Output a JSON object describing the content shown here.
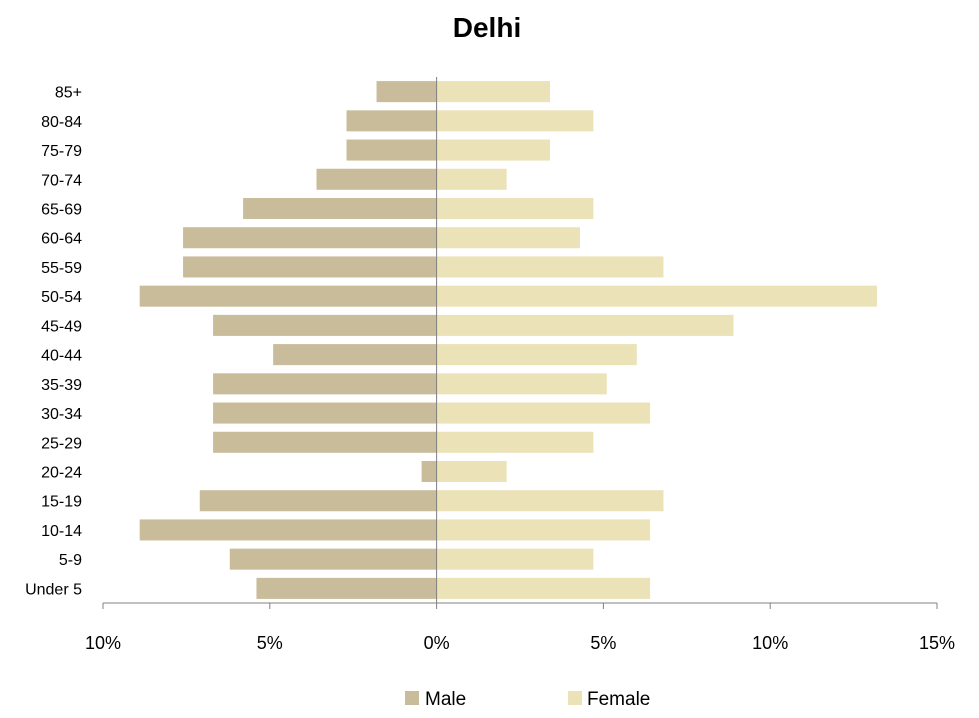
{
  "chart_data": {
    "type": "bar",
    "orientation": "horizontal",
    "title": "Delhi",
    "xlabel": "",
    "ylabel": "",
    "categories": [
      "85+",
      "80-84",
      "75-79",
      "70-74",
      "65-69",
      "60-64",
      "55-59",
      "50-54",
      "45-49",
      "40-44",
      "35-39",
      "30-34",
      "25-29",
      "20-24",
      "15-19",
      "10-14",
      "5-9",
      "Under 5"
    ],
    "series": [
      {
        "name": "Male",
        "color": "#c8bc9a",
        "values": [
          1.8,
          2.7,
          2.7,
          3.6,
          5.8,
          7.6,
          7.6,
          8.9,
          6.7,
          4.9,
          6.7,
          6.7,
          6.7,
          0.45,
          7.1,
          8.9,
          6.2,
          5.4
        ]
      },
      {
        "name": "Female",
        "color": "#ebe2b8",
        "values": [
          3.4,
          4.7,
          3.4,
          2.1,
          4.7,
          4.3,
          6.8,
          13.2,
          8.9,
          6.0,
          5.1,
          6.4,
          4.7,
          2.1,
          6.8,
          6.4,
          4.7,
          6.4
        ]
      }
    ],
    "xlim": [
      -10,
      15
    ],
    "xticks": [
      -10,
      -5,
      0,
      5,
      10,
      15
    ],
    "xtick_labels": [
      "10%",
      "5%",
      "0%",
      "5%",
      "10%",
      "15%"
    ],
    "grid": false,
    "legend": {
      "position": "bottom",
      "entries": [
        "Male",
        "Female"
      ]
    }
  }
}
